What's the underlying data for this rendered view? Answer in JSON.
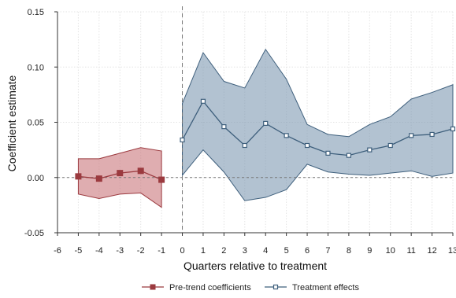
{
  "chart_data": {
    "type": "line",
    "xlabel": "Quarters relative to treatment",
    "ylabel": "Coefficient estimate",
    "xlim": [
      -6,
      13
    ],
    "ylim": [
      -0.05,
      0.15
    ],
    "xticks": [
      "-6",
      "-5",
      "-4",
      "-3",
      "-2",
      "-1",
      "0",
      "1",
      "2",
      "3",
      "4",
      "5",
      "6",
      "7",
      "8",
      "9",
      "10",
      "11",
      "12",
      "13"
    ],
    "yticks": [
      "-0.05",
      "0.00",
      "0.05",
      "0.10",
      "0.15"
    ],
    "grid": true,
    "reference_lines": {
      "vertical_x": 0,
      "horizontal_y": 0
    },
    "legend_position": "bottom",
    "series": [
      {
        "name": "Pre-trend coefficients",
        "color": "#9b3a3f",
        "band_color": "#c9777c",
        "marker": "square-filled",
        "x": [
          -5,
          -4,
          -3,
          -2,
          -1
        ],
        "y": [
          0.001,
          -0.001,
          0.004,
          0.006,
          -0.002
        ],
        "ci_low": [
          -0.015,
          -0.019,
          -0.015,
          -0.014,
          -0.027
        ],
        "ci_high": [
          0.017,
          0.017,
          0.022,
          0.027,
          0.024
        ]
      },
      {
        "name": "Treatment effects",
        "color": "#3e5f7c",
        "band_color": "#7f9ab3",
        "marker": "square-hollow",
        "x": [
          0,
          1,
          2,
          3,
          4,
          5,
          6,
          7,
          8,
          9,
          10,
          11,
          12,
          13
        ],
        "y": [
          0.034,
          0.069,
          0.046,
          0.029,
          0.049,
          0.038,
          0.029,
          0.022,
          0.02,
          0.025,
          0.029,
          0.038,
          0.039,
          0.044
        ],
        "ci_low": [
          0.002,
          0.025,
          0.005,
          -0.021,
          -0.018,
          -0.011,
          0.012,
          0.005,
          0.003,
          0.002,
          0.004,
          0.006,
          0.001,
          0.004
        ],
        "ci_high": [
          0.067,
          0.113,
          0.087,
          0.081,
          0.116,
          0.089,
          0.048,
          0.039,
          0.037,
          0.048,
          0.055,
          0.071,
          0.077,
          0.084
        ]
      }
    ]
  }
}
